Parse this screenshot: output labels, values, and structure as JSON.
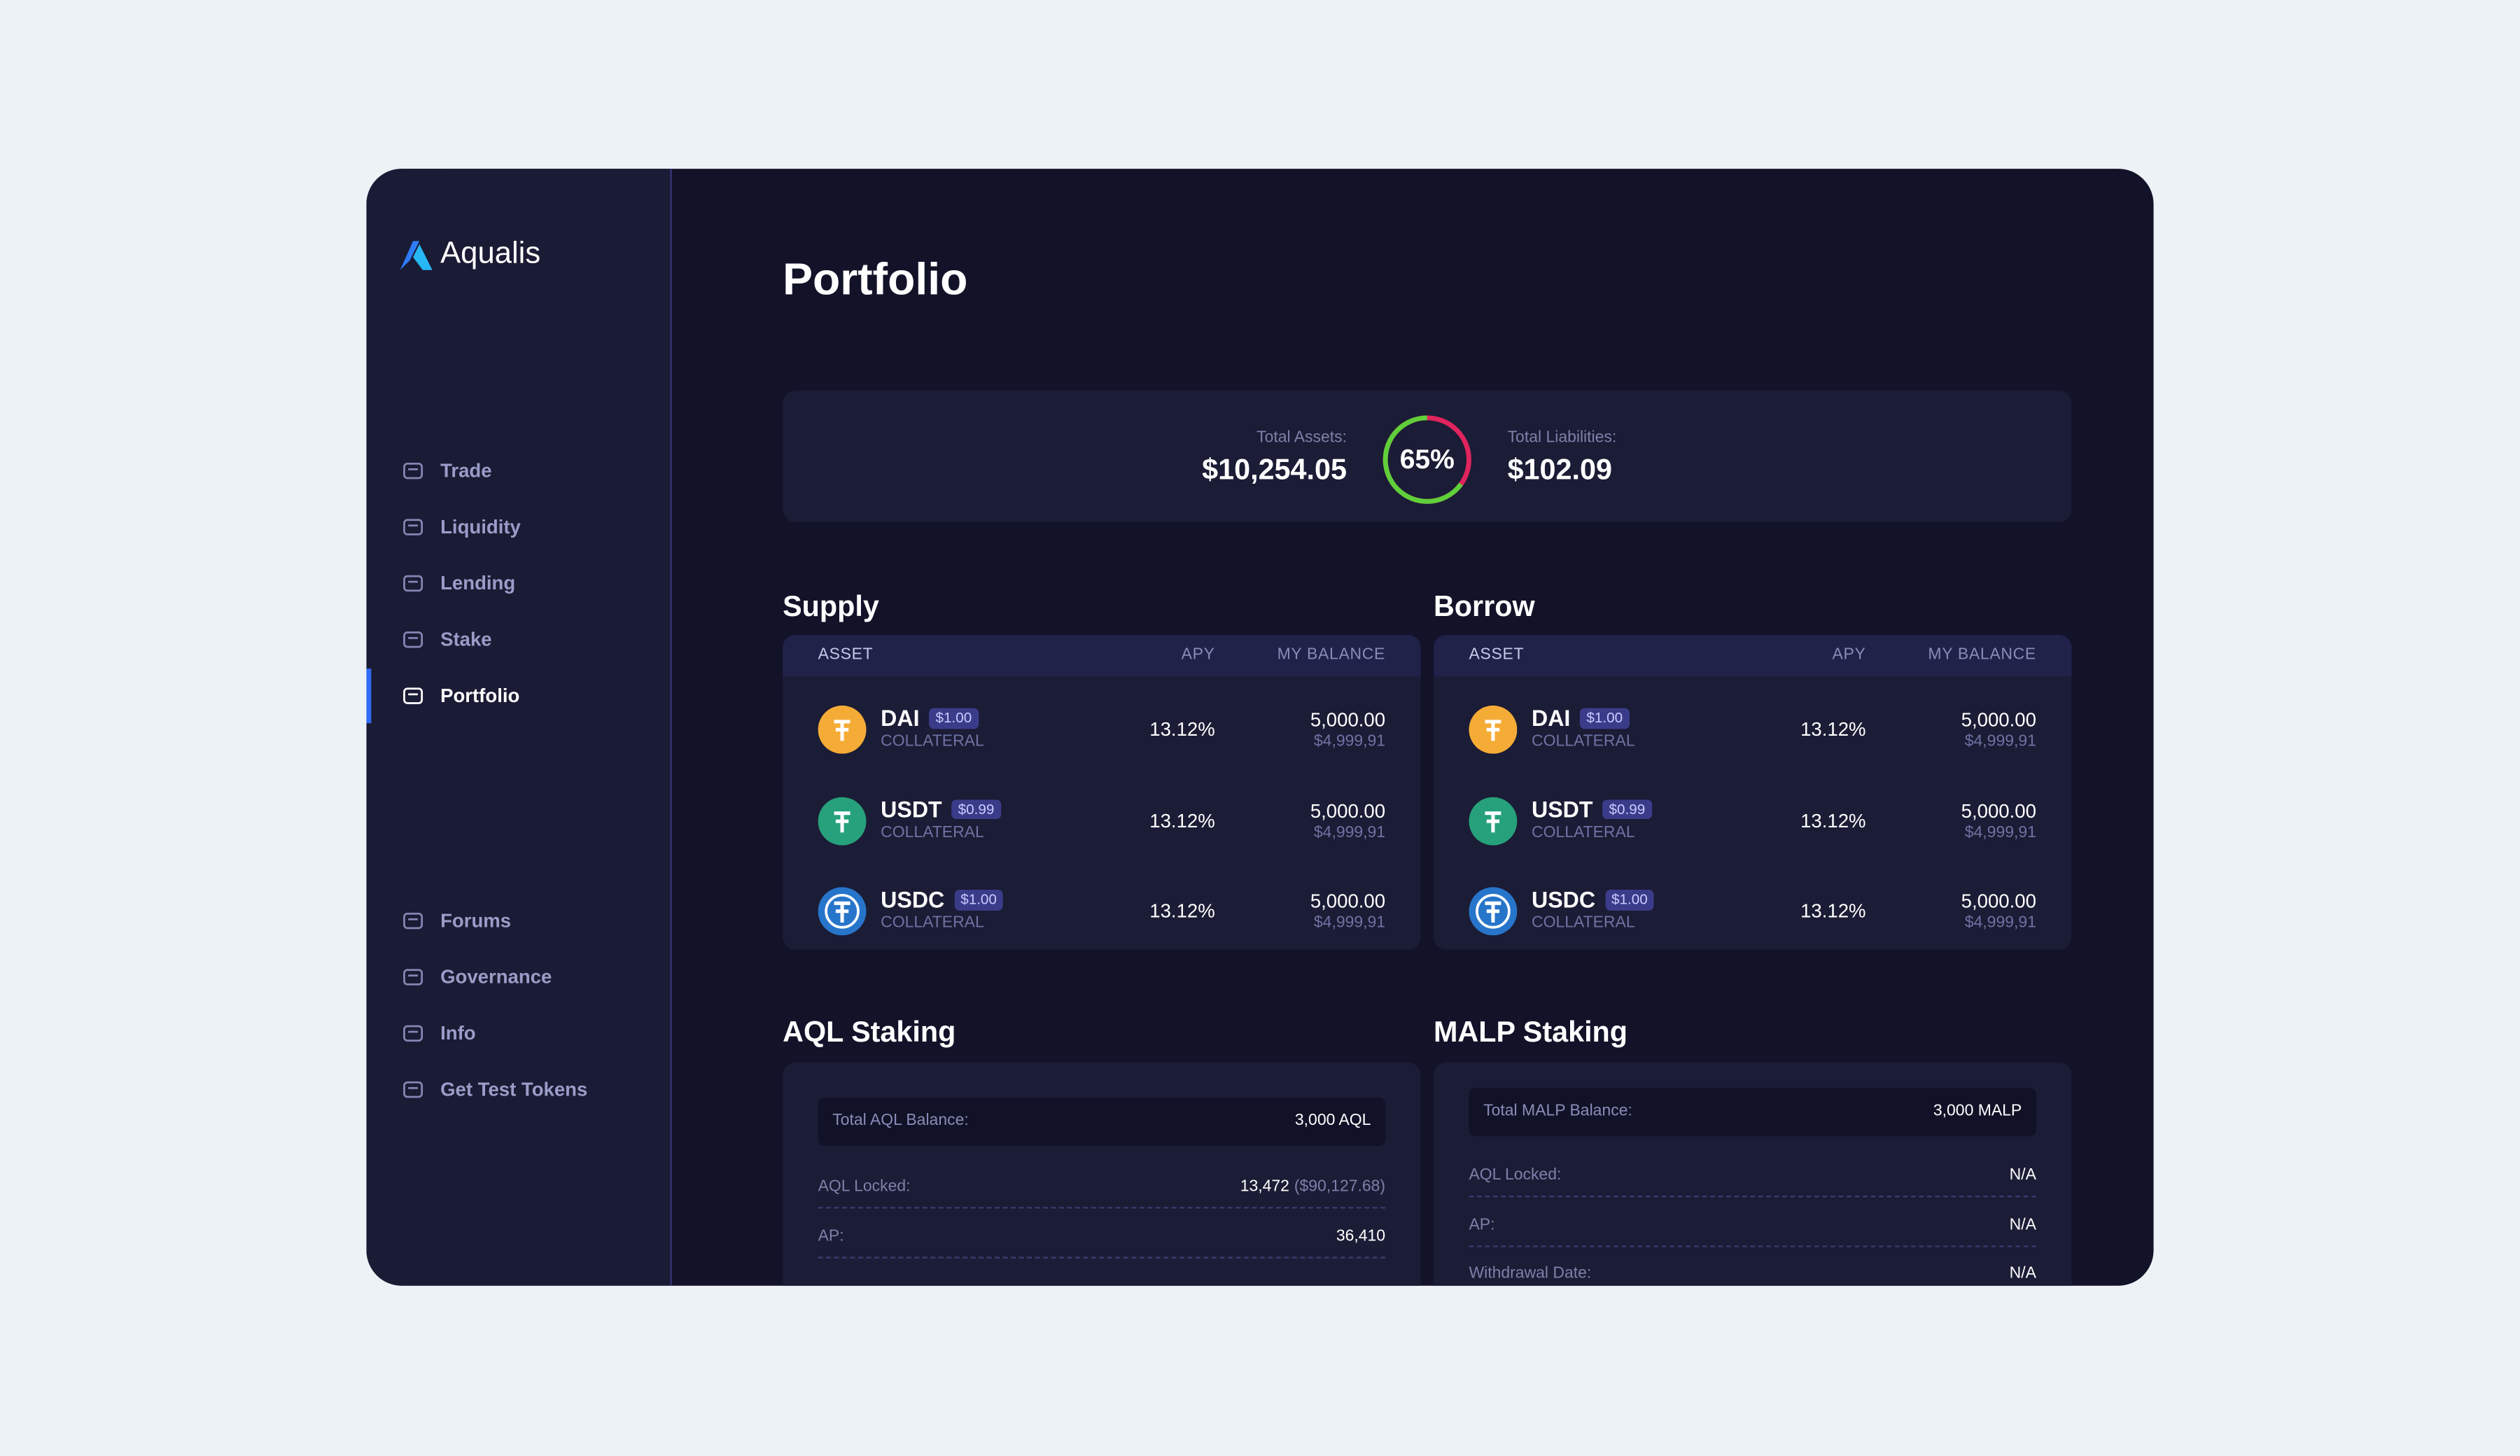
{
  "brand": "Aqualis",
  "nav": [
    "Trade",
    "Liquidity",
    "Lending",
    "Stake",
    "Portfolio"
  ],
  "active_nav_index": 4,
  "nav_bottom": [
    "Forums",
    "Governance",
    "Info",
    "Get Test Tokens"
  ],
  "page_title": "Portfolio",
  "summary": {
    "assets_label": "Total Assets:",
    "assets": "$10,254.05",
    "liabilities_label": "Total Liabilities:",
    "liabilities": "$102.09",
    "ratio": 65,
    "ratio_label": "65%"
  },
  "supply": {
    "title": "Supply",
    "columns": [
      "ASSET",
      "APY",
      "MY BALANCE"
    ],
    "rows": [
      {
        "asset": "DAI",
        "price": "$1.00",
        "tag": "COLLATERAL",
        "apy": "13.12%",
        "balance": "5,000.00",
        "balance_usd": "$4,999,91"
      },
      {
        "asset": "USDT",
        "price": "$0.99",
        "tag": "COLLATERAL",
        "apy": "13.12%",
        "balance": "5,000.00",
        "balance_usd": "$4,999,91"
      },
      {
        "asset": "USDC",
        "price": "$1.00",
        "tag": "COLLATERAL",
        "apy": "13.12%",
        "balance": "5,000.00",
        "balance_usd": "$4,999,91"
      }
    ]
  },
  "borrow": {
    "title": "Borrow",
    "columns": [
      "ASSET",
      "APY",
      "MY BALANCE"
    ],
    "rows": [
      {
        "asset": "DAI",
        "price": "$1.00",
        "tag": "COLLATERAL",
        "apy": "13.12%",
        "balance": "5,000.00",
        "balance_usd": "$4,999,91"
      },
      {
        "asset": "USDT",
        "price": "$0.99",
        "tag": "COLLATERAL",
        "apy": "13.12%",
        "balance": "5,000.00",
        "balance_usd": "$4,999,91"
      },
      {
        "asset": "USDC",
        "price": "$1.00",
        "tag": "COLLATERAL",
        "apy": "13.12%",
        "balance": "5,000.00",
        "balance_usd": "$4,999,91"
      }
    ]
  },
  "aql_staking": {
    "title": "AQL Staking",
    "balance_label": "Total AQL Balance:",
    "balance": "3,000 AQL",
    "rows": [
      {
        "label": "AQL Locked:",
        "value": "13,472",
        "note": "($90,127.68)"
      },
      {
        "label": "AP:",
        "value": "36,410"
      }
    ]
  },
  "malp_staking": {
    "title": "MALP Staking",
    "balance_label": "Total MALP Balance:",
    "balance": "3,000 MALP",
    "rows": [
      {
        "label": "AQL Locked:",
        "value": "N/A"
      },
      {
        "label": "AP:",
        "value": "N/A"
      },
      {
        "label": "Withdrawal Date:",
        "value": "N/A"
      }
    ]
  }
}
